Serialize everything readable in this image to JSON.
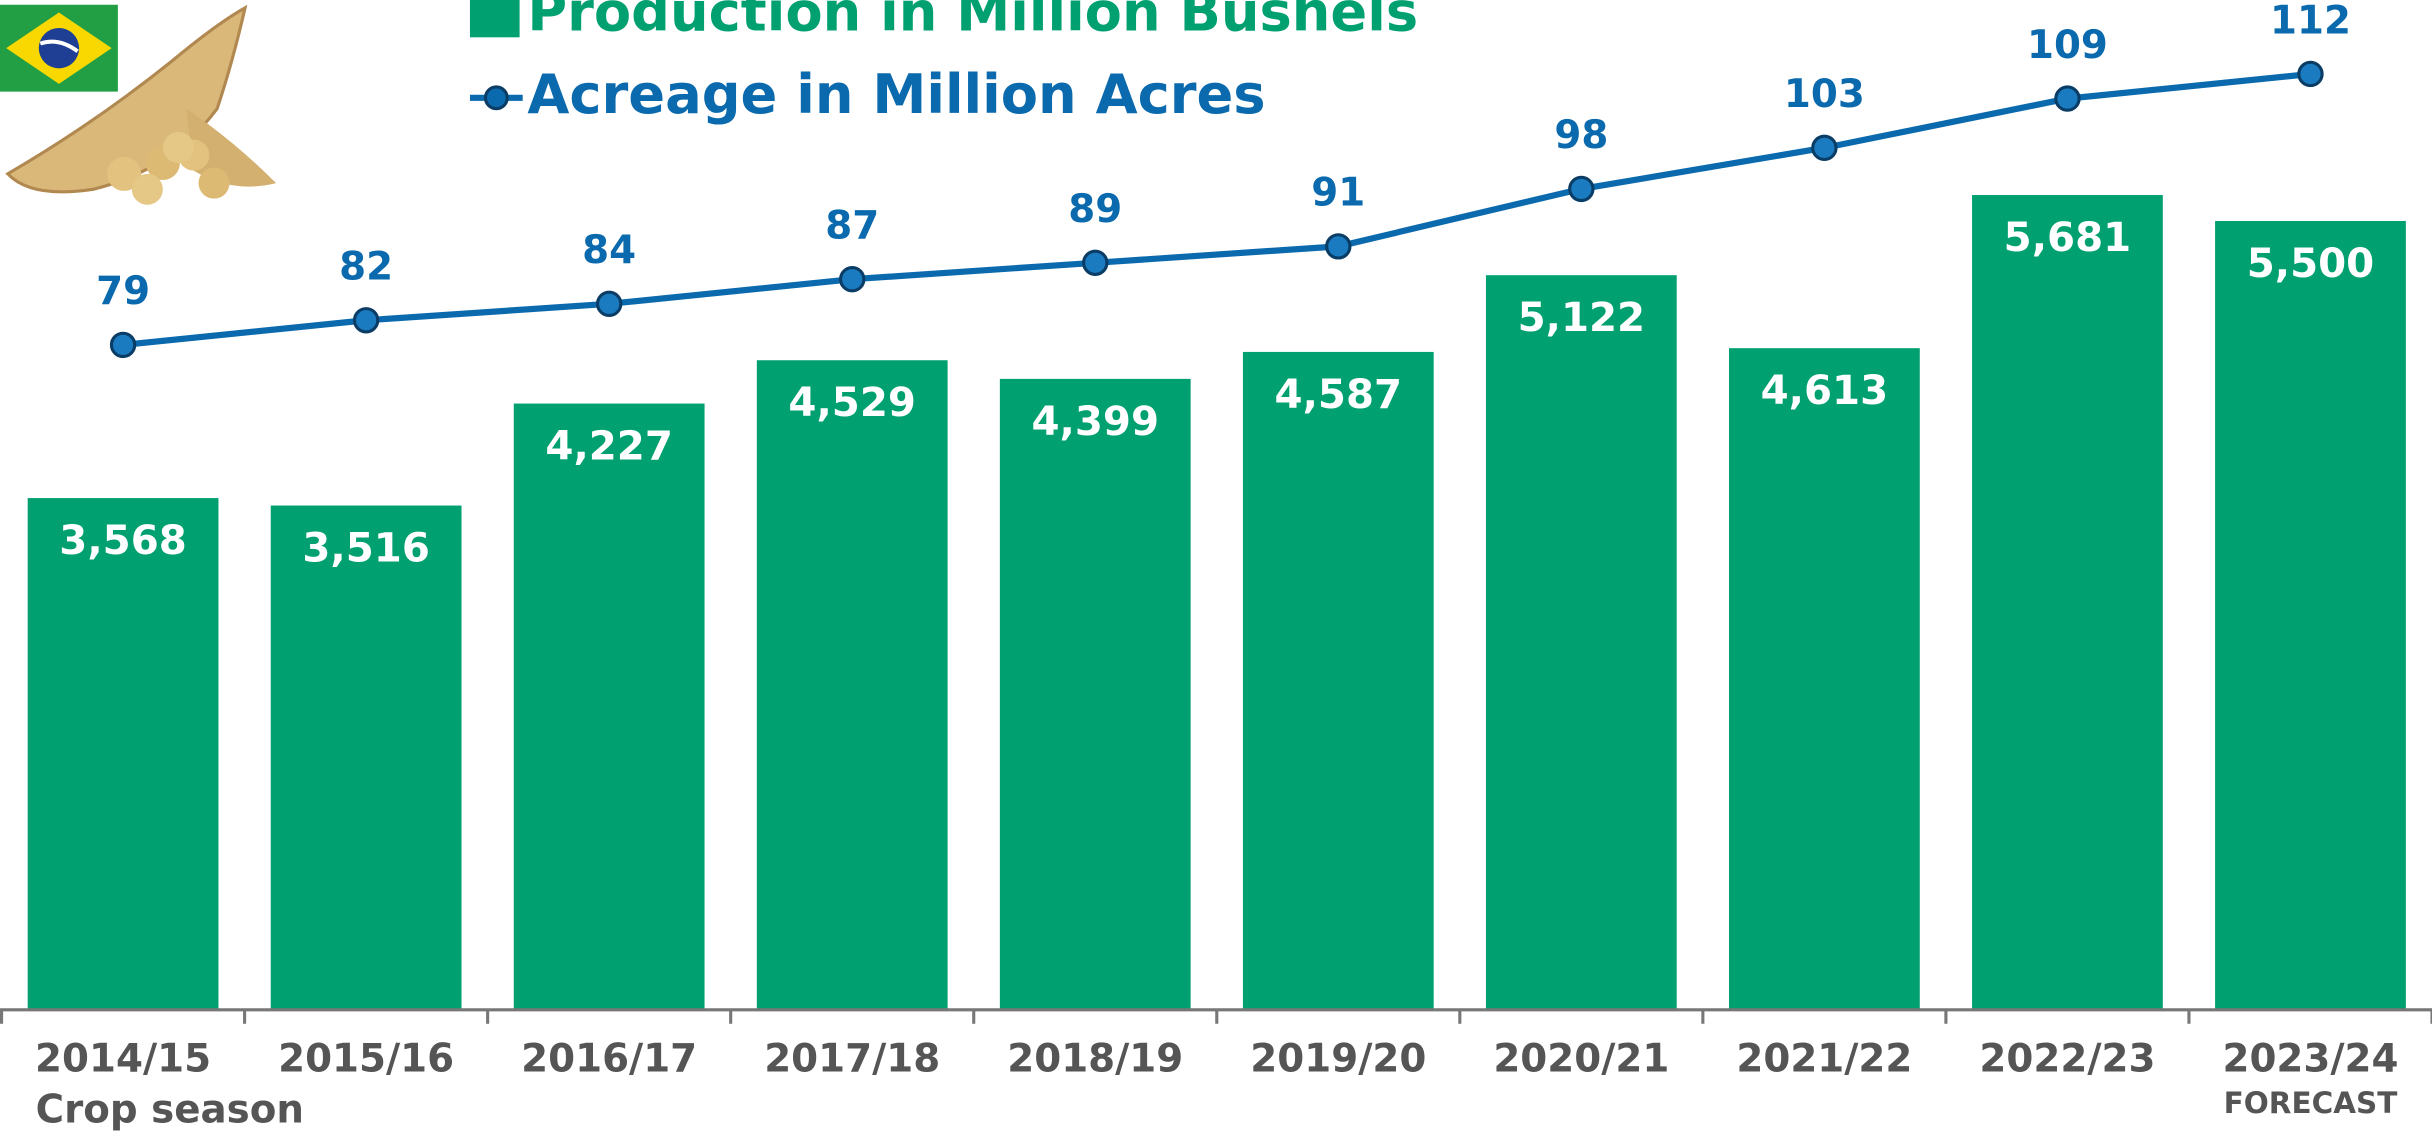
{
  "chart_data": {
    "type": "bar",
    "categories": [
      "2014/15",
      "2015/16",
      "2016/17",
      "2017/18",
      "2018/19",
      "2019/20",
      "2020/21",
      "2021/22",
      "2022/23",
      "2023/24"
    ],
    "series": [
      {
        "name": "Production in Million Bushels",
        "type": "bar",
        "color": "#00a070",
        "values": [
          3568,
          3516,
          4227,
          4529,
          4399,
          4587,
          5122,
          4613,
          5681,
          5500
        ],
        "value_labels": [
          "3,568",
          "3,516",
          "4,227",
          "4,529",
          "4,399",
          "4,587",
          "5,122",
          "4,613",
          "5,681",
          "5,500"
        ]
      },
      {
        "name": "Acreage in Million Acres",
        "type": "line",
        "axis": "y2",
        "color": "#0a6aad",
        "values": [
          79,
          82,
          84,
          87,
          89,
          91,
          98,
          103,
          109,
          112
        ]
      }
    ],
    "ylim": [
      0,
      7040
    ],
    "y2lim": [
      -2,
      121
    ],
    "xlabel": "Crop season",
    "annotations": [
      {
        "category": 9,
        "text": "FORECAST"
      }
    ]
  }
}
